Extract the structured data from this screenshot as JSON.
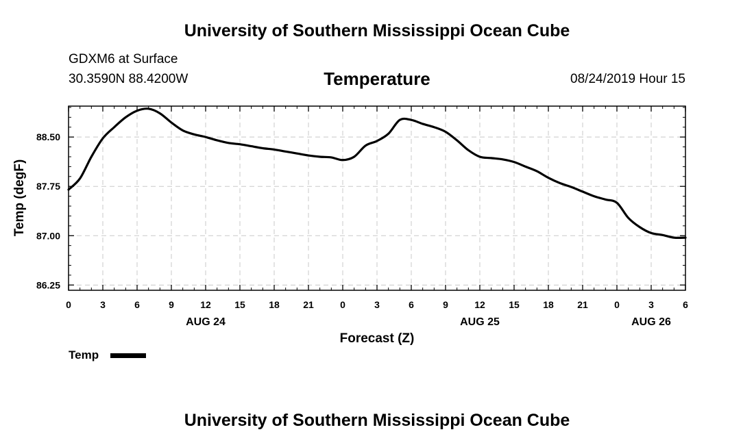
{
  "header": {
    "title": "University of Southern Mississippi Ocean Cube",
    "station_name": "GDXM6 at Surface",
    "station_coords": "30.3590N 88.4200W",
    "variable_title": "Temperature",
    "valid_time": "08/24/2019 Hour 15"
  },
  "footer": {
    "title": "University of Southern Mississippi Ocean Cube"
  },
  "legend": {
    "label": "Temp",
    "color": "#000000"
  },
  "chart_data": {
    "type": "line",
    "title": "Temperature",
    "xlabel": "Forecast (Z)",
    "ylabel": "Temp (degF)",
    "x_units": "hours from 00Z Aug 24",
    "xlim": [
      0,
      54
    ],
    "ylim": [
      86.17,
      88.97
    ],
    "x_tick_values": [
      0,
      3,
      6,
      9,
      12,
      15,
      18,
      21,
      24,
      27,
      30,
      33,
      36,
      39,
      42,
      45,
      48,
      51,
      54
    ],
    "x_tick_labels": [
      "0",
      "3",
      "6",
      "9",
      "12",
      "15",
      "18",
      "21",
      "0",
      "3",
      "6",
      "9",
      "12",
      "15",
      "18",
      "21",
      "0",
      "3",
      "6"
    ],
    "date_labels": [
      {
        "x": 12,
        "label": "AUG 24"
      },
      {
        "x": 36,
        "label": "AUG 25"
      },
      {
        "x": 51,
        "label": "AUG 26"
      }
    ],
    "y_tick_values": [
      86.25,
      87.0,
      87.75,
      88.5
    ],
    "y_tick_labels": [
      "86.25",
      "87.00",
      "87.75",
      "88.50"
    ],
    "grid": true,
    "legend_position": "bottom-left",
    "series": [
      {
        "name": "Temp",
        "color": "#000000",
        "x": [
          0,
          1,
          2,
          3,
          4,
          5,
          6,
          7,
          8,
          9,
          10,
          11,
          12,
          13,
          14,
          15,
          16,
          17,
          18,
          19,
          20,
          21,
          22,
          23,
          24,
          25,
          26,
          27,
          28,
          29,
          30,
          31,
          32,
          33,
          34,
          35,
          36,
          37,
          38,
          39,
          40,
          41,
          42,
          43,
          44,
          45,
          46,
          47,
          48,
          49,
          50,
          51,
          52,
          53,
          54
        ],
        "values": [
          87.7,
          87.87,
          88.2,
          88.48,
          88.65,
          88.8,
          88.9,
          88.93,
          88.86,
          88.72,
          88.6,
          88.54,
          88.5,
          88.45,
          88.41,
          88.39,
          88.36,
          88.33,
          88.31,
          88.28,
          88.25,
          88.22,
          88.2,
          88.19,
          88.15,
          88.2,
          88.37,
          88.44,
          88.55,
          88.76,
          88.76,
          88.7,
          88.65,
          88.58,
          88.45,
          88.3,
          88.2,
          88.18,
          88.16,
          88.12,
          88.05,
          87.98,
          87.88,
          87.8,
          87.74,
          87.67,
          87.6,
          87.55,
          87.5,
          87.27,
          87.13,
          87.04,
          87.01,
          86.97,
          86.97
        ]
      }
    ]
  }
}
